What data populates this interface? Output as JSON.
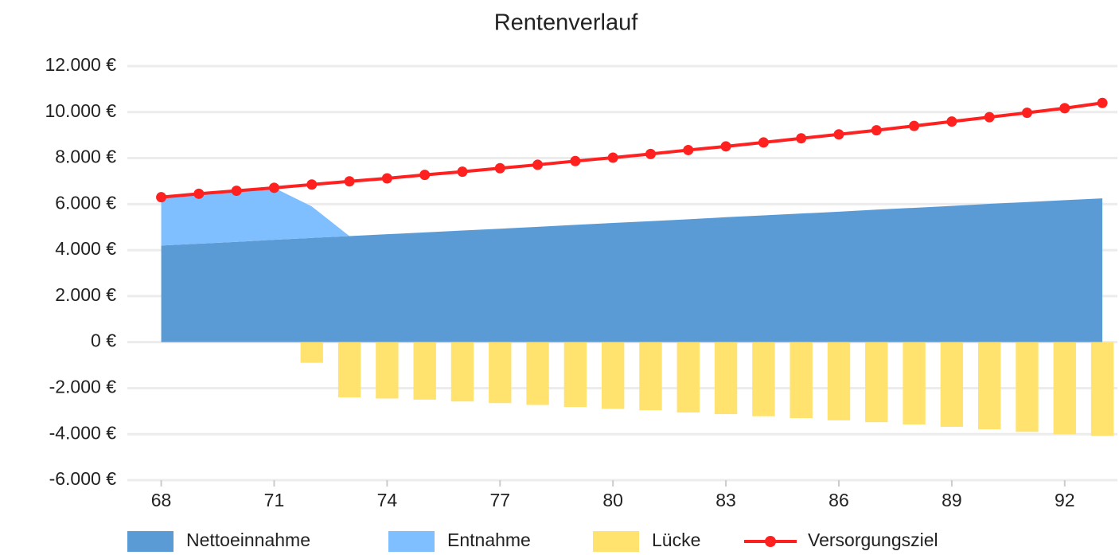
{
  "chart_data": {
    "type": "combo",
    "title": "Rentenverlauf",
    "x": [
      68,
      69,
      70,
      71,
      72,
      73,
      74,
      75,
      76,
      77,
      78,
      79,
      80,
      81,
      82,
      83,
      84,
      85,
      86,
      87,
      88,
      89,
      90,
      91,
      92,
      93
    ],
    "xlim": [
      67.1,
      93.4
    ],
    "xticks": [
      68,
      71,
      74,
      77,
      80,
      83,
      86,
      89,
      92
    ],
    "ylim": [
      -6000,
      12000
    ],
    "yticks": [
      {
        "value": -6000,
        "label": "-6.000 €"
      },
      {
        "value": -4000,
        "label": "-4.000 €"
      },
      {
        "value": -2000,
        "label": "-2.000 €"
      },
      {
        "value": 0,
        "label": "0 €"
      },
      {
        "value": 2000,
        "label": "2.000 €"
      },
      {
        "value": 4000,
        "label": "4.000 €"
      },
      {
        "value": 6000,
        "label": "6.000 €"
      },
      {
        "value": 8000,
        "label": "8.000 €"
      },
      {
        "value": 10000,
        "label": "10.000 €"
      },
      {
        "value": 12000,
        "label": "12.000 €"
      }
    ],
    "grid": true,
    "legend": "bottom",
    "series": [
      {
        "name": "Nettoeinnahme",
        "type": "area",
        "color": "#5b9bd5",
        "values": [
          4200,
          4280,
          4360,
          4450,
          4530,
          4610,
          4690,
          4770,
          4850,
          4930,
          5010,
          5100,
          5180,
          5260,
          5340,
          5430,
          5510,
          5590,
          5670,
          5760,
          5840,
          5920,
          6010,
          6090,
          6170,
          6250
        ]
      },
      {
        "name": "Entnahme",
        "type": "area",
        "stacked": true,
        "color": "#7fbfff",
        "values": [
          2100,
          2170,
          2220,
          2260,
          1370,
          0,
          0,
          0,
          0,
          0,
          0,
          0,
          0,
          0,
          0,
          0,
          0,
          0,
          0,
          0,
          0,
          0,
          0,
          0,
          0,
          0
        ]
      },
      {
        "name": "Lücke",
        "type": "bar",
        "color": "#ffe36e",
        "values": [
          0,
          0,
          0,
          0,
          -900,
          -2400,
          -2450,
          -2500,
          -2580,
          -2650,
          -2730,
          -2820,
          -2900,
          -2960,
          -3060,
          -3130,
          -3220,
          -3300,
          -3400,
          -3480,
          -3580,
          -3680,
          -3790,
          -3900,
          -4000,
          -4080
        ]
      },
      {
        "name": "Versorgungsziel",
        "type": "line",
        "color": "#ff2020",
        "values": [
          6300,
          6450,
          6580,
          6710,
          6850,
          6990,
          7120,
          7270,
          7410,
          7560,
          7710,
          7870,
          8020,
          8180,
          8350,
          8510,
          8680,
          8860,
          9030,
          9210,
          9400,
          9590,
          9780,
          9970,
          10170,
          10400
        ]
      }
    ]
  }
}
